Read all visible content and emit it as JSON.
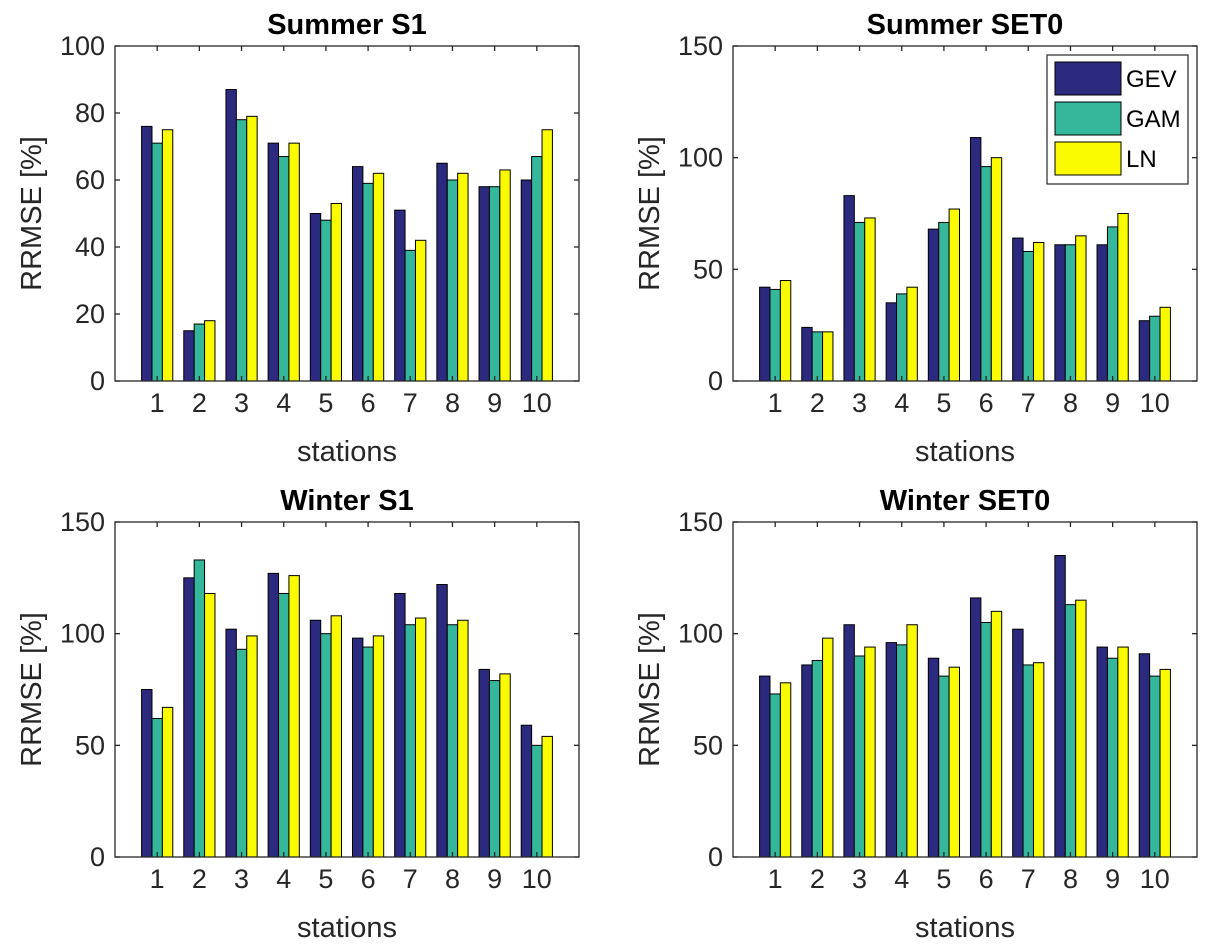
{
  "chart_data": [
    {
      "type": "bar",
      "title": "Summer S1",
      "xlabel": "stations",
      "ylabel": "RRMSE [%]",
      "categories": [
        "1",
        "2",
        "3",
        "4",
        "5",
        "6",
        "7",
        "8",
        "9",
        "10"
      ],
      "ylim": [
        0,
        100
      ],
      "yticks": [
        0,
        20,
        40,
        60,
        80,
        100
      ],
      "legend": null,
      "series": [
        {
          "name": "GEV",
          "values": [
            76,
            15,
            87,
            71,
            50,
            64,
            51,
            65,
            58,
            60
          ]
        },
        {
          "name": "GAM",
          "values": [
            71,
            17,
            78,
            67,
            48,
            59,
            39,
            60,
            58,
            67
          ]
        },
        {
          "name": "LN",
          "values": [
            75,
            18,
            79,
            71,
            53,
            62,
            42,
            62,
            63,
            75
          ]
        }
      ]
    },
    {
      "type": "bar",
      "title": "Summer SET0",
      "xlabel": "stations",
      "ylabel": "RRMSE [%]",
      "categories": [
        "1",
        "2",
        "3",
        "4",
        "5",
        "6",
        "7",
        "8",
        "9",
        "10"
      ],
      "ylim": [
        0,
        150
      ],
      "yticks": [
        0,
        50,
        100,
        150
      ],
      "legend": "top-right",
      "series": [
        {
          "name": "GEV",
          "values": [
            42,
            24,
            83,
            35,
            68,
            109,
            64,
            61,
            61,
            27
          ]
        },
        {
          "name": "GAM",
          "values": [
            41,
            22,
            71,
            39,
            71,
            96,
            58,
            61,
            69,
            29
          ]
        },
        {
          "name": "LN",
          "values": [
            45,
            22,
            73,
            42,
            77,
            100,
            62,
            65,
            75,
            33
          ]
        }
      ]
    },
    {
      "type": "bar",
      "title": "Winter S1",
      "xlabel": "stations",
      "ylabel": "RRMSE [%]",
      "categories": [
        "1",
        "2",
        "3",
        "4",
        "5",
        "6",
        "7",
        "8",
        "9",
        "10"
      ],
      "ylim": [
        0,
        150
      ],
      "yticks": [
        0,
        50,
        100,
        150
      ],
      "legend": null,
      "series": [
        {
          "name": "GEV",
          "values": [
            75,
            125,
            102,
            127,
            106,
            98,
            118,
            122,
            84,
            59
          ]
        },
        {
          "name": "GAM",
          "values": [
            62,
            133,
            93,
            118,
            100,
            94,
            104,
            104,
            79,
            50
          ]
        },
        {
          "name": "LN",
          "values": [
            67,
            118,
            99,
            126,
            108,
            99,
            107,
            106,
            82,
            54
          ]
        }
      ]
    },
    {
      "type": "bar",
      "title": "Winter SET0",
      "xlabel": "stations",
      "ylabel": "RRMSE [%]",
      "categories": [
        "1",
        "2",
        "3",
        "4",
        "5",
        "6",
        "7",
        "8",
        "9",
        "10"
      ],
      "ylim": [
        0,
        150
      ],
      "yticks": [
        0,
        50,
        100,
        150
      ],
      "legend": null,
      "series": [
        {
          "name": "GEV",
          "values": [
            81,
            86,
            104,
            96,
            89,
            116,
            102,
            135,
            94,
            91
          ]
        },
        {
          "name": "GAM",
          "values": [
            73,
            88,
            90,
            95,
            81,
            105,
            86,
            113,
            89,
            81
          ]
        },
        {
          "name": "LN",
          "values": [
            78,
            98,
            94,
            104,
            85,
            110,
            87,
            115,
            94,
            84
          ]
        }
      ]
    }
  ],
  "colors": {
    "GEV": "#2c2a7e",
    "GAM": "#35b79b",
    "LN": "#fafa00"
  }
}
